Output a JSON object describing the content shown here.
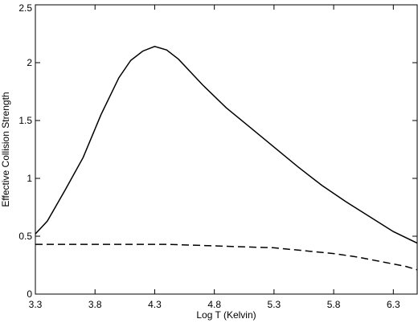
{
  "chart_data": {
    "type": "line",
    "title": "",
    "xlabel": "Log T (Kelvin)",
    "ylabel": "Effective Collision Strength",
    "xlim": [
      3.3,
      6.5
    ],
    "ylim": [
      0,
      2.5
    ],
    "x_ticks": [
      3.3,
      3.8,
      4.3,
      4.8,
      5.3,
      5.8,
      6.3
    ],
    "x_tick_labels": [
      "3.3",
      "3.8",
      "4.3",
      "4.8",
      "5.3",
      "5.8",
      "6.3"
    ],
    "y_ticks": [
      0,
      0.5,
      1,
      1.5,
      2,
      2.5
    ],
    "y_tick_labels": [
      "0",
      "0.5",
      "1",
      "1.5",
      "2",
      "2.5"
    ],
    "grid": false,
    "legend": "none",
    "series": [
      {
        "style": "solid",
        "color": "#000000",
        "x": [
          3.3,
          3.4,
          3.55,
          3.7,
          3.85,
          4.0,
          4.1,
          4.2,
          4.3,
          4.4,
          4.5,
          4.7,
          4.9,
          5.1,
          5.3,
          5.5,
          5.7,
          5.9,
          6.1,
          6.3,
          6.5
        ],
        "y": [
          0.52,
          0.63,
          0.9,
          1.18,
          1.55,
          1.87,
          2.02,
          2.1,
          2.14,
          2.11,
          2.03,
          1.81,
          1.61,
          1.44,
          1.27,
          1.1,
          0.94,
          0.8,
          0.67,
          0.54,
          0.44
        ]
      },
      {
        "style": "dashed",
        "color": "#000000",
        "x": [
          3.3,
          3.5,
          3.8,
          4.1,
          4.4,
          4.7,
          5.0,
          5.3,
          5.6,
          5.8,
          6.0,
          6.2,
          6.4,
          6.5
        ],
        "y": [
          0.43,
          0.43,
          0.43,
          0.43,
          0.43,
          0.42,
          0.41,
          0.4,
          0.37,
          0.35,
          0.32,
          0.28,
          0.24,
          0.21
        ]
      }
    ]
  }
}
